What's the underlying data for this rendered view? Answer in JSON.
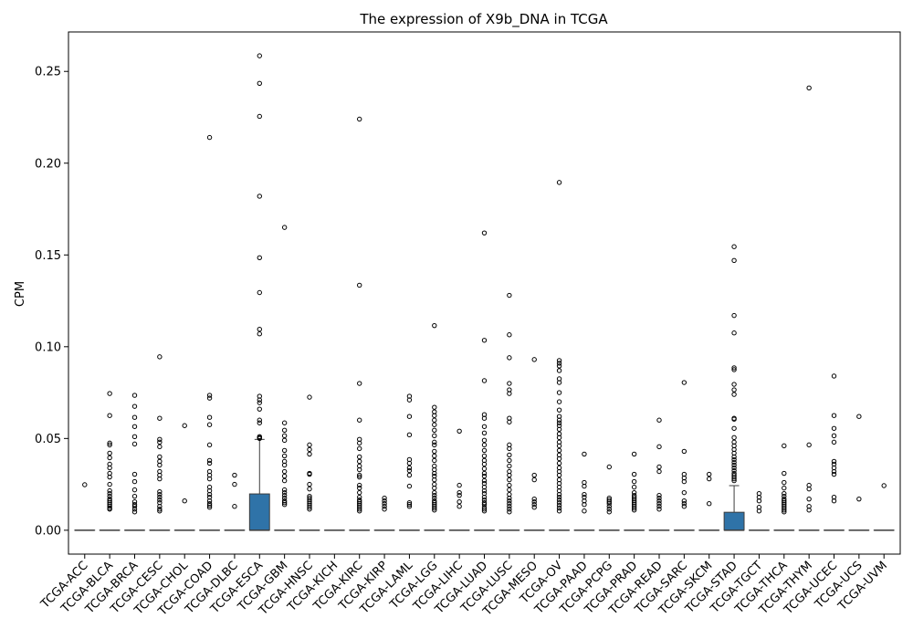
{
  "chart_data": {
    "type": "boxplot",
    "title": "The expression of X9b_DNA in TCGA",
    "xlabel": "",
    "ylabel": "CPM",
    "ylim": [
      -0.013,
      0.2715
    ],
    "yticks": [
      "0.00",
      "0.05",
      "0.10",
      "0.15",
      "0.20",
      "0.25"
    ],
    "ytick_values": [
      0,
      0.05,
      0.1,
      0.15,
      0.2,
      0.25
    ],
    "box_color": "#2f73a8",
    "categories": [
      "TCGA-ACC",
      "TCGA-BLCA",
      "TCGA-BRCA",
      "TCGA-CESC",
      "TCGA-CHOL",
      "TCGA-COAD",
      "TCGA-DLBC",
      "TCGA-ESCA",
      "TCGA-GBM",
      "TCGA-HNSC",
      "TCGA-KICH",
      "TCGA-KIRC",
      "TCGA-KIRP",
      "TCGA-LAML",
      "TCGA-LGG",
      "TCGA-LIHC",
      "TCGA-LUAD",
      "TCGA-LUSC",
      "TCGA-MESO",
      "TCGA-OV",
      "TCGA-PAAD",
      "TCGA-PCPG",
      "TCGA-PRAD",
      "TCGA-READ",
      "TCGA-SARC",
      "TCGA-SKCM",
      "TCGA-STAD",
      "TCGA-TGCT",
      "TCGA-THCA",
      "TCGA-THYM",
      "TCGA-UCEC",
      "TCGA-UCS",
      "TCGA-UVM"
    ],
    "boxes": [
      {
        "q1": 0,
        "median": 0,
        "q3": 0,
        "whisker_low": 0,
        "whisker_high": 0,
        "outliers": [
          0.0248
        ]
      },
      {
        "q1": 0,
        "median": 0,
        "q3": 0,
        "whisker_low": 0,
        "whisker_high": 0,
        "outliers": [
          0.0745,
          0.0625,
          0.0475,
          0.0465,
          0.042,
          0.0395,
          0.036,
          0.034,
          0.031,
          0.029,
          0.025,
          0.0215,
          0.02,
          0.0185,
          0.017,
          0.016,
          0.015,
          0.014,
          0.013,
          0.012,
          0.0115
        ]
      },
      {
        "q1": 0,
        "median": 0,
        "q3": 0,
        "whisker_low": 0,
        "whisker_high": 0,
        "outliers": [
          0.0735,
          0.0675,
          0.0615,
          0.0565,
          0.051,
          0.047,
          0.0305,
          0.0265,
          0.022,
          0.0185,
          0.0155,
          0.014,
          0.013,
          0.0115,
          0.01
        ]
      },
      {
        "q1": 0,
        "median": 0,
        "q3": 0,
        "whisker_low": 0,
        "whisker_high": 0,
        "outliers": [
          0.0945,
          0.061,
          0.0495,
          0.048,
          0.0455,
          0.04,
          0.0375,
          0.0355,
          0.032,
          0.03,
          0.028,
          0.021,
          0.0195,
          0.018,
          0.0165,
          0.015,
          0.013,
          0.0115,
          0.0105
        ]
      },
      {
        "q1": 0,
        "median": 0,
        "q3": 0,
        "whisker_low": 0,
        "whisker_high": 0,
        "outliers": [
          0.057,
          0.016
        ]
      },
      {
        "q1": 0,
        "median": 0,
        "q3": 0,
        "whisker_low": 0,
        "whisker_high": 0,
        "outliers": [
          0.214,
          0.0735,
          0.072,
          0.0615,
          0.0575,
          0.0465,
          0.038,
          0.0365,
          0.032,
          0.03,
          0.028,
          0.0235,
          0.0215,
          0.0195,
          0.018,
          0.016,
          0.0145,
          0.0135,
          0.0125
        ]
      },
      {
        "q1": 0,
        "median": 0,
        "q3": 0,
        "whisker_low": 0,
        "whisker_high": 0,
        "outliers": [
          0.03,
          0.025,
          0.013
        ]
      },
      {
        "q1": 0,
        "median": 0,
        "q3": 0.0198,
        "whisker_low": 0,
        "whisker_high": 0.0495,
        "outliers": [
          0.2585,
          0.2435,
          0.2255,
          0.182,
          0.1485,
          0.1295,
          0.1095,
          0.107,
          0.073,
          0.071,
          0.0695,
          0.066,
          0.06,
          0.0585,
          0.051,
          0.0505,
          0.05
        ]
      },
      {
        "q1": 0,
        "median": 0,
        "q3": 0,
        "whisker_low": 0,
        "whisker_high": 0,
        "outliers": [
          0.165,
          0.0585,
          0.0545,
          0.0515,
          0.049,
          0.0435,
          0.0405,
          0.0375,
          0.0355,
          0.032,
          0.0295,
          0.027,
          0.022,
          0.0205,
          0.019,
          0.0175,
          0.016,
          0.015,
          0.014
        ]
      },
      {
        "q1": 0,
        "median": 0,
        "q3": 0,
        "whisker_low": 0,
        "whisker_high": 0,
        "outliers": [
          0.0725,
          0.0465,
          0.044,
          0.0415,
          0.031,
          0.0305,
          0.025,
          0.0225,
          0.0185,
          0.0175,
          0.0165,
          0.0155,
          0.0145,
          0.0135,
          0.0125,
          0.0115
        ]
      },
      {
        "q1": 0,
        "median": 0,
        "q3": 0,
        "whisker_low": 0,
        "whisker_high": 0,
        "outliers": []
      },
      {
        "q1": 0,
        "median": 0,
        "q3": 0,
        "whisker_low": 0,
        "whisker_high": 0,
        "outliers": [
          0.224,
          0.1335,
          0.08,
          0.06,
          0.0495,
          0.0475,
          0.0445,
          0.04,
          0.0375,
          0.035,
          0.033,
          0.03,
          0.029,
          0.0245,
          0.023,
          0.0205,
          0.018,
          0.0165,
          0.0155,
          0.0145,
          0.0135,
          0.0125,
          0.0115,
          0.0105
        ]
      },
      {
        "q1": 0,
        "median": 0,
        "q3": 0,
        "whisker_low": 0,
        "whisker_high": 0,
        "outliers": [
          0.0175,
          0.016,
          0.0145,
          0.013,
          0.0115
        ]
      },
      {
        "q1": 0,
        "median": 0,
        "q3": 0,
        "whisker_low": 0,
        "whisker_high": 0,
        "outliers": [
          0.073,
          0.071,
          0.062,
          0.052,
          0.0385,
          0.0365,
          0.034,
          0.0325,
          0.03,
          0.024,
          0.015,
          0.014,
          0.013
        ]
      },
      {
        "q1": 0,
        "median": 0,
        "q3": 0,
        "whisker_low": 0,
        "whisker_high": 0,
        "outliers": [
          0.1115,
          0.067,
          0.0645,
          0.0625,
          0.06,
          0.0575,
          0.0545,
          0.0515,
          0.048,
          0.0465,
          0.043,
          0.0405,
          0.038,
          0.035,
          0.033,
          0.031,
          0.0295,
          0.0275,
          0.025,
          0.023,
          0.0205,
          0.019,
          0.0175,
          0.016,
          0.015,
          0.014,
          0.013,
          0.012,
          0.011
        ]
      },
      {
        "q1": 0,
        "median": 0,
        "q3": 0,
        "whisker_low": 0,
        "whisker_high": 0,
        "outliers": [
          0.054,
          0.0245,
          0.0205,
          0.019,
          0.0155,
          0.013
        ]
      },
      {
        "q1": 0,
        "median": 0,
        "q3": 0,
        "whisker_low": 0,
        "whisker_high": 0,
        "outliers": [
          0.162,
          0.1035,
          0.0815,
          0.063,
          0.061,
          0.0565,
          0.053,
          0.049,
          0.0465,
          0.0435,
          0.0405,
          0.038,
          0.036,
          0.0335,
          0.031,
          0.0295,
          0.027,
          0.0255,
          0.0235,
          0.0215,
          0.02,
          0.018,
          0.0165,
          0.015,
          0.014,
          0.0125,
          0.0115,
          0.0105
        ]
      },
      {
        "q1": 0,
        "median": 0,
        "q3": 0,
        "whisker_low": 0,
        "whisker_high": 0,
        "outliers": [
          0.128,
          0.1065,
          0.094,
          0.08,
          0.0765,
          0.0745,
          0.061,
          0.059,
          0.0465,
          0.0445,
          0.041,
          0.038,
          0.035,
          0.032,
          0.03,
          0.0275,
          0.0245,
          0.022,
          0.0195,
          0.0175,
          0.016,
          0.0145,
          0.013,
          0.0115,
          0.01
        ]
      },
      {
        "q1": 0,
        "median": 0,
        "q3": 0,
        "whisker_low": 0,
        "whisker_high": 0,
        "outliers": [
          0.093,
          0.03,
          0.0275,
          0.017,
          0.0155,
          0.014,
          0.0125
        ]
      },
      {
        "q1": 0,
        "median": 0,
        "q3": 0,
        "whisker_low": 0,
        "whisker_high": 0,
        "outliers": [
          0.1895,
          0.0925,
          0.091,
          0.0895,
          0.087,
          0.0825,
          0.0805,
          0.075,
          0.07,
          0.0655,
          0.062,
          0.06,
          0.0585,
          0.057,
          0.055,
          0.0525,
          0.0505,
          0.048,
          0.046,
          0.0435,
          0.041,
          0.039,
          0.0365,
          0.034,
          0.032,
          0.03,
          0.0275,
          0.0255,
          0.0235,
          0.0215,
          0.0195,
          0.018,
          0.0165,
          0.015,
          0.0135,
          0.012,
          0.0105
        ]
      },
      {
        "q1": 0,
        "median": 0,
        "q3": 0,
        "whisker_low": 0,
        "whisker_high": 0,
        "outliers": [
          0.0415,
          0.026,
          0.024,
          0.0195,
          0.018,
          0.016,
          0.014,
          0.0105
        ]
      },
      {
        "q1": 0,
        "median": 0,
        "q3": 0,
        "whisker_low": 0,
        "whisker_high": 0,
        "outliers": [
          0.0345,
          0.0175,
          0.0165,
          0.0155,
          0.0145,
          0.013,
          0.0115,
          0.01
        ]
      },
      {
        "q1": 0,
        "median": 0,
        "q3": 0,
        "whisker_low": 0,
        "whisker_high": 0,
        "outliers": [
          0.0415,
          0.0305,
          0.0265,
          0.0235,
          0.0205,
          0.019,
          0.018,
          0.017,
          0.016,
          0.015,
          0.014,
          0.013,
          0.012,
          0.011
        ]
      },
      {
        "q1": 0,
        "median": 0,
        "q3": 0,
        "whisker_low": 0,
        "whisker_high": 0,
        "outliers": [
          0.06,
          0.0455,
          0.0345,
          0.032,
          0.019,
          0.0175,
          0.016,
          0.0145,
          0.013,
          0.0115
        ]
      },
      {
        "q1": 0,
        "median": 0,
        "q3": 0,
        "whisker_low": 0,
        "whisker_high": 0,
        "outliers": [
          0.0805,
          0.043,
          0.0305,
          0.0285,
          0.0265,
          0.0205,
          0.016,
          0.0145,
          0.013
        ]
      },
      {
        "q1": 0,
        "median": 0,
        "q3": 0,
        "whisker_low": 0,
        "whisker_high": 0,
        "outliers": [
          0.0305,
          0.028,
          0.0145
        ]
      },
      {
        "q1": 0,
        "median": 0,
        "q3": 0.0098,
        "whisker_low": 0,
        "whisker_high": 0.0243,
        "outliers": [
          0.1545,
          0.147,
          0.117,
          0.1075,
          0.0885,
          0.0875,
          0.0795,
          0.0765,
          0.074,
          0.061,
          0.0605,
          0.0555,
          0.0505,
          0.048,
          0.046,
          0.044,
          0.042,
          0.04,
          0.0385,
          0.037,
          0.0355,
          0.034,
          0.0325,
          0.031,
          0.03,
          0.029,
          0.028,
          0.027
        ]
      },
      {
        "q1": 0,
        "median": 0,
        "q3": 0,
        "whisker_low": 0,
        "whisker_high": 0,
        "outliers": [
          0.02,
          0.018,
          0.016,
          0.0125,
          0.0105
        ]
      },
      {
        "q1": 0,
        "median": 0,
        "q3": 0,
        "whisker_low": 0,
        "whisker_high": 0,
        "outliers": [
          0.046,
          0.031,
          0.026,
          0.023,
          0.02,
          0.0185,
          0.017,
          0.016,
          0.015,
          0.014,
          0.013,
          0.012,
          0.011,
          0.01
        ]
      },
      {
        "q1": 0,
        "median": 0,
        "q3": 0,
        "whisker_low": 0,
        "whisker_high": 0,
        "outliers": [
          0.241,
          0.0465,
          0.0245,
          0.0225,
          0.017,
          0.013,
          0.011
        ]
      },
      {
        "q1": 0,
        "median": 0,
        "q3": 0,
        "whisker_low": 0,
        "whisker_high": 0,
        "outliers": [
          0.084,
          0.0625,
          0.0555,
          0.0515,
          0.048,
          0.0375,
          0.036,
          0.034,
          0.032,
          0.0305,
          0.018,
          0.016
        ]
      },
      {
        "q1": 0,
        "median": 0,
        "q3": 0,
        "whisker_low": 0,
        "whisker_high": 0,
        "outliers": [
          0.062,
          0.017
        ]
      },
      {
        "q1": 0,
        "median": 0,
        "q3": 0,
        "whisker_low": 0,
        "whisker_high": 0,
        "outliers": [
          0.0243
        ]
      }
    ]
  }
}
